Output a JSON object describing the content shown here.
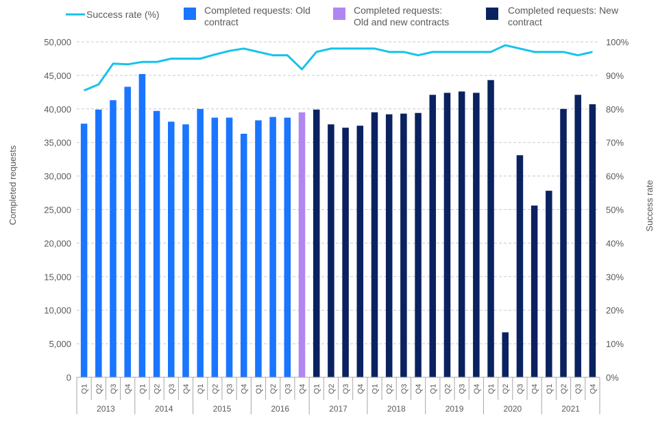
{
  "chart_data": {
    "type": "bar",
    "title": "",
    "ylabel": "Completed requests",
    "y2label": "Success rate",
    "ylim": [
      0,
      50000
    ],
    "y2lim": [
      0,
      100
    ],
    "grid": true,
    "legend_position": "top",
    "y_ticks": [
      "0",
      "5,000",
      "10,000",
      "15,000",
      "20,000",
      "25,000",
      "30,000",
      "35,000",
      "40,000",
      "45,000",
      "50,000"
    ],
    "y2_ticks": [
      "0%",
      "10%",
      "20%",
      "30%",
      "40%",
      "50%",
      "60%",
      "70%",
      "80%",
      "90%",
      "100%"
    ],
    "years": [
      "2013",
      "2014",
      "2015",
      "2016",
      "2017",
      "2018",
      "2019",
      "2020",
      "2021"
    ],
    "categories": [
      "Q1",
      "Q2",
      "Q3",
      "Q4",
      "Q1",
      "Q2",
      "Q3",
      "Q4",
      "Q1",
      "Q2",
      "Q3",
      "Q4",
      "Q1",
      "Q2",
      "Q3",
      "Q4",
      "Q1",
      "Q2",
      "Q3",
      "Q4",
      "Q1",
      "Q2",
      "Q3",
      "Q4",
      "Q1",
      "Q2",
      "Q3",
      "Q4",
      "Q1",
      "Q2",
      "Q3",
      "Q4",
      "Q1",
      "Q2",
      "Q3",
      "Q4"
    ],
    "bar_values": [
      37800,
      39900,
      41300,
      43300,
      45200,
      39700,
      38100,
      37700,
      40000,
      38700,
      38700,
      36300,
      38300,
      38800,
      38700,
      39500,
      39900,
      37700,
      37200,
      37500,
      39500,
      39200,
      39300,
      39400,
      42100,
      42400,
      42600,
      42400,
      44300,
      6700,
      33100,
      25600,
      27800,
      40000,
      42100,
      40700
    ],
    "bar_group": [
      0,
      0,
      0,
      0,
      0,
      0,
      0,
      0,
      0,
      0,
      0,
      0,
      0,
      0,
      0,
      1,
      2,
      2,
      2,
      2,
      2,
      2,
      2,
      2,
      2,
      2,
      2,
      2,
      2,
      2,
      2,
      2,
      2,
      2,
      2,
      2
    ],
    "series": [
      {
        "name": "Completed requests: Old contract",
        "color": "#1a75ff"
      },
      {
        "name": "Completed requests: Old and new contracts",
        "color": "#b286f0"
      },
      {
        "name": "Completed requests: New contract",
        "color": "#0b2260"
      }
    ],
    "line_series": {
      "name": "Success rate (%)",
      "color": "#14c3ea",
      "values": [
        85.5,
        87.3,
        93.5,
        93.3,
        94.0,
        94.0,
        95.0,
        95.0,
        95.0,
        96.2,
        97.3,
        98.0,
        97.0,
        96.0,
        96.0,
        91.8,
        97.0,
        98.0,
        98.0,
        98.0,
        98.0,
        97.0,
        97.0,
        96.0,
        97.0,
        97.0,
        97.0,
        97.0,
        97.0,
        99.0,
        98.0,
        97.0,
        97.0,
        97.0,
        96.0,
        97.0
      ]
    },
    "legend": {
      "line_label": "Success rate (%)",
      "old_label_1": "Completed requests: Old",
      "old_label_2": "contract",
      "mixed_label_1": "Completed requests:",
      "mixed_label_2": "Old and new contracts",
      "new_label_1": "Completed requests: New",
      "new_label_2": "contract"
    }
  }
}
